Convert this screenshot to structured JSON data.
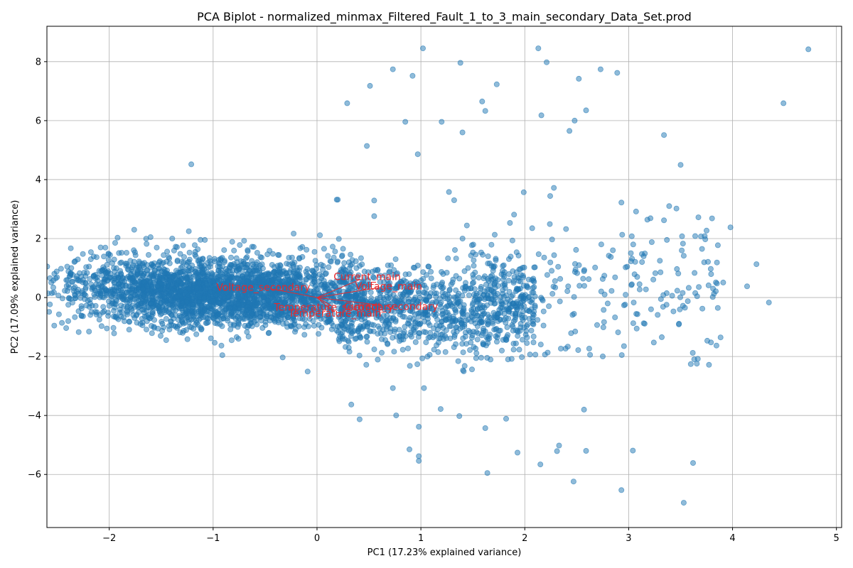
{
  "chart_data": {
    "type": "scatter",
    "title": "PCA Biplot - normalized_minmax_Filtered_Fault_1_to_3_main_secondary_Data_Set.prod",
    "xlabel": "PC1 (17.23% explained variance)",
    "ylabel": "PC2 (17.09% explained variance)",
    "xlim": [
      -2.6,
      5.05
    ],
    "ylim": [
      -7.8,
      9.2
    ],
    "xticks": [
      -2,
      -1,
      0,
      1,
      2,
      3,
      4,
      5
    ],
    "yticks": [
      -6,
      -4,
      -2,
      0,
      2,
      4,
      6,
      8
    ],
    "xtick_labels": [
      "−2",
      "−1",
      "0",
      "1",
      "2",
      "3",
      "4",
      "5"
    ],
    "ytick_labels": [
      "−6",
      "−4",
      "−2",
      "0",
      "2",
      "4",
      "6",
      "8"
    ],
    "grid": true,
    "point_color": "#1f77b4",
    "point_alpha": 0.5,
    "loading_color": "#e8282b",
    "outliers": [
      [
        1.02,
        8.45
      ],
      [
        2.13,
        8.45
      ],
      [
        4.73,
        8.42
      ],
      [
        2.21,
        7.98
      ],
      [
        1.38,
        7.96
      ],
      [
        0.73,
        7.74
      ],
      [
        2.73,
        7.74
      ],
      [
        0.92,
        7.52
      ],
      [
        2.52,
        7.42
      ],
      [
        2.89,
        7.62
      ],
      [
        1.73,
        7.23
      ],
      [
        0.51,
        7.18
      ],
      [
        0.29,
        6.59
      ],
      [
        1.59,
        6.65
      ],
      [
        4.49,
        6.59
      ],
      [
        1.62,
        6.33
      ],
      [
        2.16,
        6.18
      ],
      [
        2.59,
        6.35
      ],
      [
        0.85,
        5.96
      ],
      [
        1.2,
        5.96
      ],
      [
        2.48,
        6.0
      ],
      [
        1.4,
        5.6
      ],
      [
        2.43,
        5.65
      ],
      [
        3.34,
        5.51
      ],
      [
        0.48,
        5.14
      ],
      [
        0.97,
        4.86
      ],
      [
        -1.21,
        4.52
      ],
      [
        3.5,
        4.5
      ],
      [
        2.28,
        3.72
      ],
      [
        1.27,
        3.58
      ],
      [
        1.99,
        3.57
      ],
      [
        0.19,
        3.32
      ],
      [
        1.32,
        3.3
      ],
      [
        0.55,
        3.29
      ],
      [
        3.39,
        3.1
      ],
      [
        3.46,
        3.02
      ],
      [
        2.93,
        3.22
      ],
      [
        4.35,
        -0.17
      ],
      [
        0.73,
        -3.07
      ],
      [
        1.03,
        -3.07
      ],
      [
        0.33,
        -3.63
      ],
      [
        1.19,
        -3.78
      ],
      [
        1.37,
        -4.02
      ],
      [
        0.41,
        -4.13
      ],
      [
        1.82,
        -4.11
      ],
      [
        2.57,
        -3.8
      ],
      [
        0.98,
        -4.38
      ],
      [
        1.62,
        -4.43
      ],
      [
        0.89,
        -5.15
      ],
      [
        0.98,
        -5.38
      ],
      [
        0.98,
        -5.54
      ],
      [
        1.93,
        -5.26
      ],
      [
        2.33,
        -5.02
      ],
      [
        2.59,
        -5.2
      ],
      [
        3.04,
        -5.19
      ],
      [
        2.31,
        -5.21
      ],
      [
        2.15,
        -5.66
      ],
      [
        1.64,
        -5.95
      ],
      [
        3.62,
        -5.61
      ],
      [
        2.47,
        -6.24
      ],
      [
        2.93,
        -6.53
      ],
      [
        3.53,
        -6.96
      ],
      [
        4.23,
        1.13
      ],
      [
        4.14,
        0.38
      ],
      [
        3.98,
        2.38
      ],
      [
        3.75,
        2.27
      ],
      [
        3.91,
        0.51
      ],
      [
        3.85,
        1.19
      ],
      [
        -2.27,
        0.71
      ],
      [
        -2.15,
        0.74
      ],
      [
        -1.76,
        2.3
      ],
      [
        -0.09,
        -2.51
      ],
      [
        -0.33,
        -2.03
      ],
      [
        -0.92,
        -1.63
      ],
      [
        0.2,
        3.32
      ],
      [
        0.55,
        2.76
      ],
      [
        3.18,
        2.64
      ],
      [
        3.21,
        2.69
      ],
      [
        3.34,
        2.62
      ],
      [
        3.03,
        2.08
      ]
    ],
    "loadings": [
      {
        "label": "Current_main",
        "x": 0.42,
        "y": 0.62
      },
      {
        "label": "Voltage_main",
        "x": 0.6,
        "y": 0.34
      },
      {
        "label": "Voltage_secondary",
        "x": -0.45,
        "y": 0.3
      },
      {
        "label": "Current_secondary",
        "x": 0.62,
        "y": -0.26
      },
      {
        "label": "Temperature_secondary",
        "x": 0.14,
        "y": -0.28
      },
      {
        "label": "Temperature_main",
        "x": 0.15,
        "y": -0.46
      }
    ]
  }
}
